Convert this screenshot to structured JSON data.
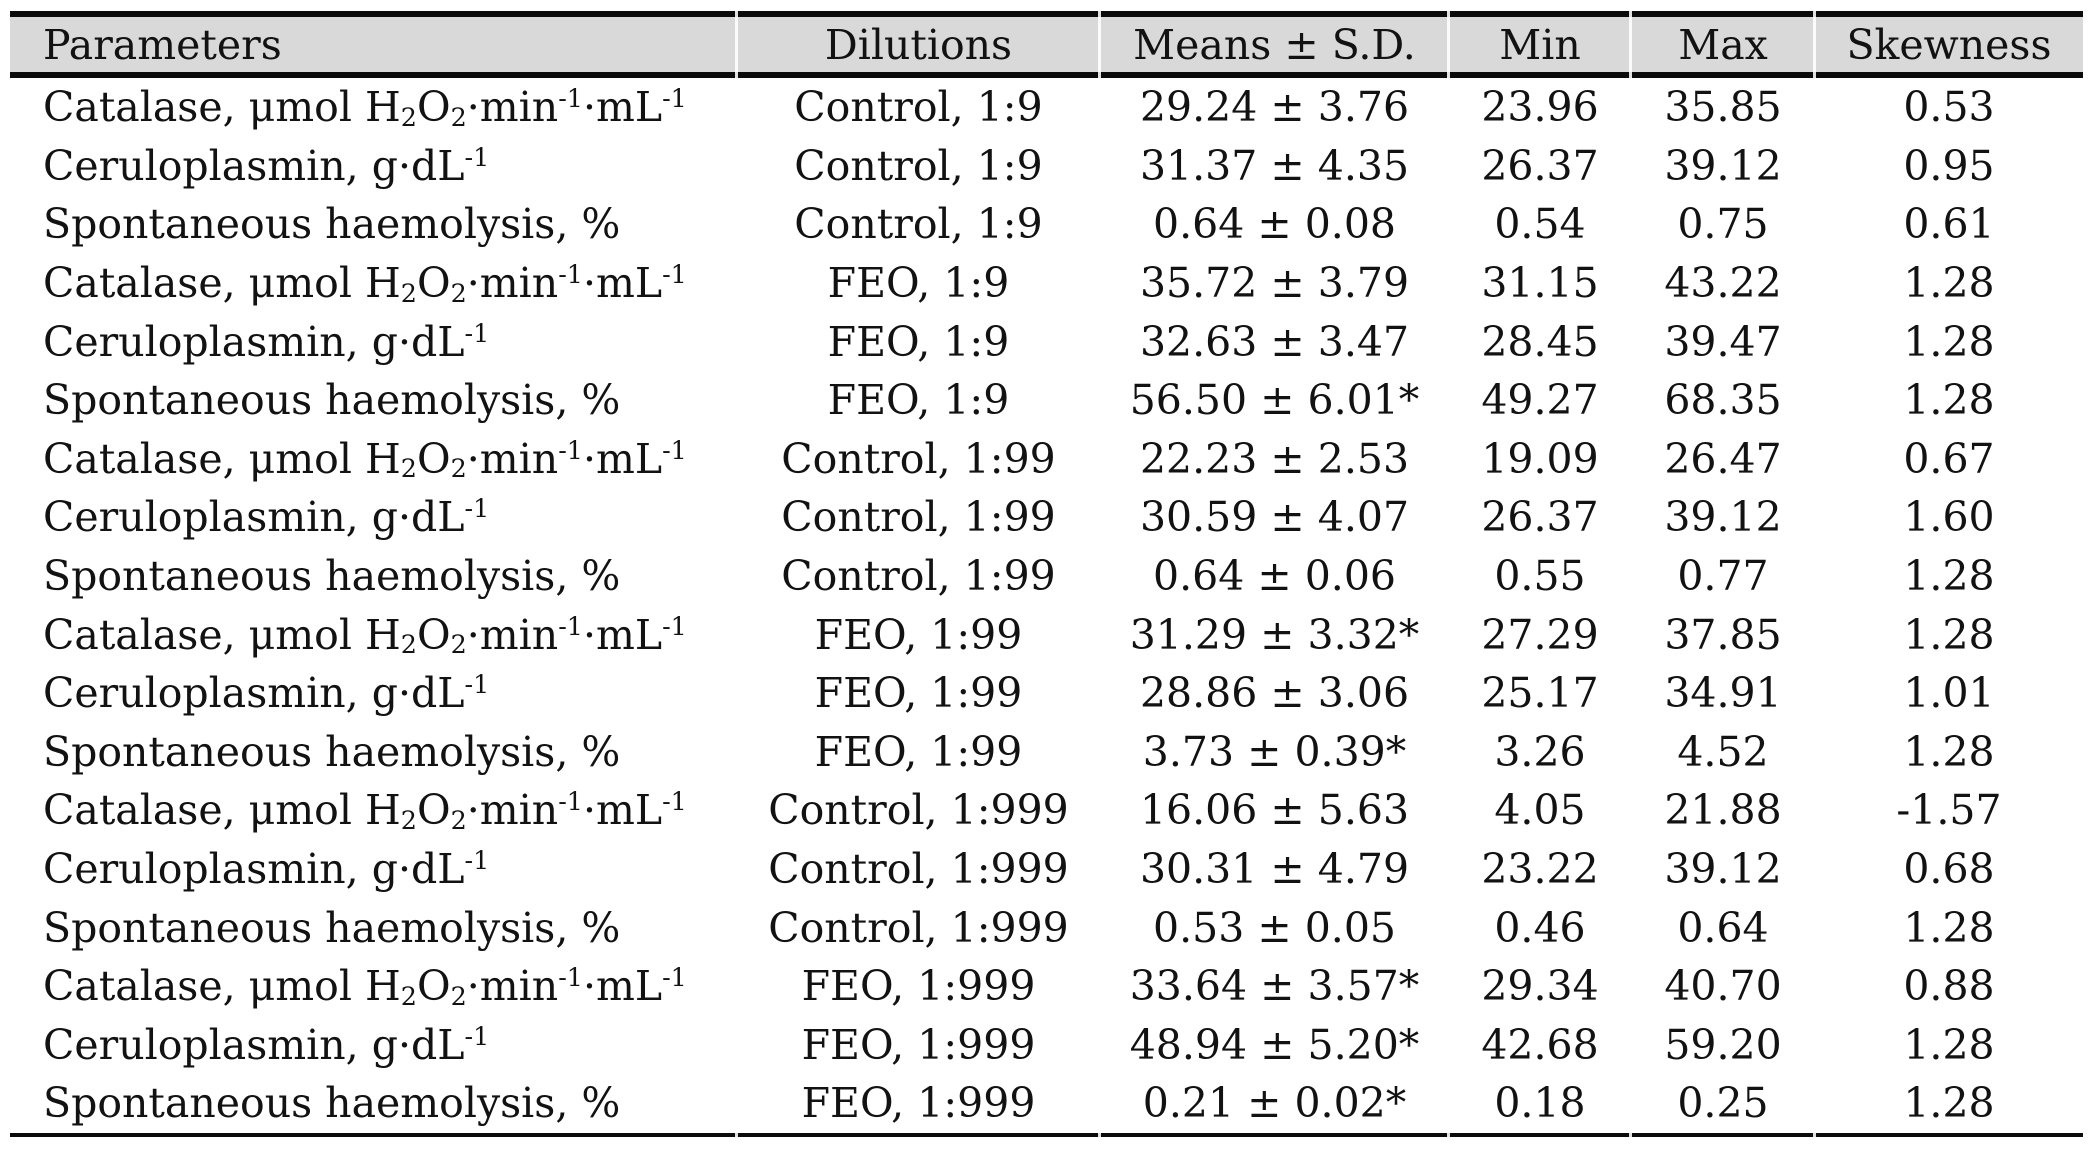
{
  "style": {
    "header_background": "#d9d9d9",
    "rule_color": "#0b0b0b",
    "text_color": "#121212"
  },
  "table": {
    "columns": [
      "Parameters",
      "Dilutions",
      "Means ± S.D.",
      "Min",
      "Max",
      "Skewness"
    ],
    "rows": [
      [
        "Catalase, μmol H_{2}O_{2}·min^{-1}·mL^{-1}",
        "Control, 1:9",
        "29.24 ± 3.76",
        "23.96",
        "35.85",
        "0.53"
      ],
      [
        "Ceruloplasmin, g·dL^{-1}",
        "Control, 1:9",
        "31.37 ± 4.35",
        "26.37",
        "39.12",
        "0.95"
      ],
      [
        "Spontaneous haemolysis, %",
        "Control, 1:9",
        "0.64 ± 0.08",
        "0.54",
        "0.75",
        "0.61"
      ],
      [
        "Catalase, μmol H_{2}O_{2}·min^{-1}·mL^{-1}",
        "FEO, 1:9",
        "35.72 ± 3.79",
        "31.15",
        "43.22",
        "1.28"
      ],
      [
        "Ceruloplasmin, g·dL^{-1}",
        "FEO, 1:9",
        "32.63 ± 3.47",
        "28.45",
        "39.47",
        "1.28"
      ],
      [
        "Spontaneous haemolysis, %",
        "FEO, 1:9",
        "56.50 ± 6.01*",
        "49.27",
        "68.35",
        "1.28"
      ],
      [
        "Catalase, μmol H_{2}O_{2}·min^{-1}·mL^{-1}",
        "Control, 1:99",
        "22.23 ± 2.53",
        "19.09",
        "26.47",
        "0.67"
      ],
      [
        "Ceruloplasmin, g·dL^{-1}",
        "Control, 1:99",
        "30.59 ± 4.07",
        "26.37",
        "39.12",
        "1.60"
      ],
      [
        "Spontaneous haemolysis, %",
        "Control, 1:99",
        "0.64 ± 0.06",
        "0.55",
        "0.77",
        "1.28"
      ],
      [
        "Catalase, μmol H_{2}O_{2}·min^{-1}·mL^{-1}",
        "FEO, 1:99",
        "31.29 ± 3.32*",
        "27.29",
        "37.85",
        "1.28"
      ],
      [
        "Ceruloplasmin, g·dL^{-1}",
        "FEO, 1:99",
        "28.86 ± 3.06",
        "25.17",
        "34.91",
        "1.01"
      ],
      [
        "Spontaneous haemolysis, %",
        "FEO, 1:99",
        "3.73 ± 0.39*",
        "3.26",
        "4.52",
        "1.28"
      ],
      [
        "Catalase, μmol H_{2}O_{2}·min^{-1}·mL^{-1}",
        "Control, 1:999",
        "16.06 ± 5.63",
        "4.05",
        "21.88",
        "-1.57"
      ],
      [
        "Ceruloplasmin, g·dL^{-1}",
        "Control, 1:999",
        "30.31 ± 4.79",
        "23.22",
        "39.12",
        "0.68"
      ],
      [
        "Spontaneous haemolysis, %",
        "Control, 1:999",
        "0.53 ± 0.05",
        "0.46",
        "0.64",
        "1.28"
      ],
      [
        "Catalase, μmol H_{2}O_{2}·min^{-1}·mL^{-1}",
        "FEO, 1:999",
        "33.64 ± 3.57*",
        "29.34",
        "40.70",
        "0.88"
      ],
      [
        "Ceruloplasmin, g·dL^{-1}",
        "FEO, 1:999",
        "48.94 ± 5.20*",
        "42.68",
        "59.20",
        "1.28"
      ],
      [
        "Spontaneous haemolysis, %",
        "FEO, 1:999",
        "0.21 ± 0.02*",
        "0.18",
        "0.25",
        "1.28"
      ]
    ]
  }
}
